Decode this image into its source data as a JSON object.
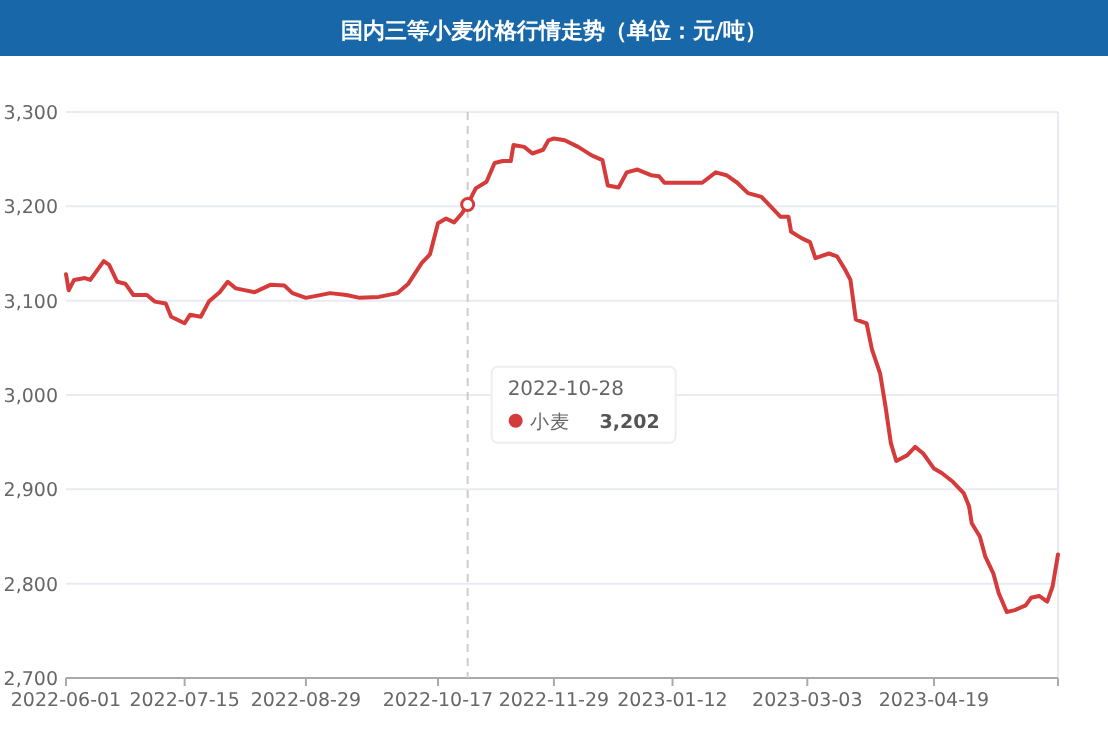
{
  "chart_data": {
    "type": "line",
    "title": "国内三等小麦价格行情走势（单位：元/吨）",
    "xlim": [
      "2022-06-01",
      "2023-06-04"
    ],
    "xticks": [
      "2022-06-01",
      "2022-07-15",
      "2022-08-29",
      "2022-10-17",
      "2022-11-29",
      "2023-01-12",
      "2023-03-03",
      "2023-04-19"
    ],
    "ylim": [
      2700,
      3300
    ],
    "yticks": [
      {
        "value": 2700,
        "label": "2,700"
      },
      {
        "value": 2800,
        "label": "2,800"
      },
      {
        "value": 2900,
        "label": "2,900"
      },
      {
        "value": 3000,
        "label": "3,000"
      },
      {
        "value": 3100,
        "label": "3,100"
      },
      {
        "value": 3200,
        "label": "3,200"
      },
      {
        "value": 3300,
        "label": "3,300"
      }
    ],
    "grid": "y",
    "line_style": "solid",
    "series": [
      {
        "name": "小麦",
        "color": "#d63b3b",
        "x": [
          "2022-06-01",
          "2022-06-02",
          "2022-06-04",
          "2022-06-08",
          "2022-06-10",
          "2022-06-15",
          "2022-06-17",
          "2022-06-20",
          "2022-06-23",
          "2022-06-26",
          "2022-07-01",
          "2022-07-04",
          "2022-07-08",
          "2022-07-10",
          "2022-07-15",
          "2022-07-17",
          "2022-07-21",
          "2022-07-24",
          "2022-07-28",
          "2022-07-31",
          "2022-08-03",
          "2022-08-10",
          "2022-08-16",
          "2022-08-21",
          "2022-08-24",
          "2022-08-29",
          "2022-09-07",
          "2022-09-13",
          "2022-09-18",
          "2022-09-25",
          "2022-10-02",
          "2022-10-06",
          "2022-10-11",
          "2022-10-14",
          "2022-10-17",
          "2022-10-20",
          "2022-10-23",
          "2022-10-26",
          "2022-10-28",
          "2022-10-31",
          "2022-11-04",
          "2022-11-07",
          "2022-11-10",
          "2022-11-13",
          "2022-11-14",
          "2022-11-18",
          "2022-11-21",
          "2022-11-25",
          "2022-11-27",
          "2022-11-29",
          "2022-12-03",
          "2022-12-08",
          "2022-12-13",
          "2022-12-17",
          "2022-12-19",
          "2022-12-23",
          "2022-12-26",
          "2022-12-30",
          "2023-01-04",
          "2023-01-07",
          "2023-01-09",
          "2023-01-12",
          "2023-01-23",
          "2023-01-28",
          "2023-02-01",
          "2023-02-05",
          "2023-02-09",
          "2023-02-14",
          "2023-02-18",
          "2023-02-21",
          "2023-02-24",
          "2023-02-25",
          "2023-03-01",
          "2023-03-04",
          "2023-03-06",
          "2023-03-11",
          "2023-03-14",
          "2023-03-17",
          "2023-03-19",
          "2023-03-21",
          "2023-03-25",
          "2023-03-27",
          "2023-03-30",
          "2023-04-01",
          "2023-04-03",
          "2023-04-05",
          "2023-04-09",
          "2023-04-12",
          "2023-04-15",
          "2023-04-19",
          "2023-04-22",
          "2023-04-26",
          "2023-04-30",
          "2023-05-02",
          "2023-05-03",
          "2023-05-06",
          "2023-05-08",
          "2023-05-11",
          "2023-05-13",
          "2023-05-16",
          "2023-05-19",
          "2023-05-23",
          "2023-05-25",
          "2023-05-28",
          "2023-05-31",
          "2023-06-02",
          "2023-06-04"
        ],
        "values": [
          3128,
          3111,
          3122,
          3124,
          3122,
          3142,
          3138,
          3120,
          3118,
          3106,
          3106,
          3099,
          3097,
          3083,
          3076,
          3085,
          3083,
          3099,
          3109,
          3120,
          3113,
          3109,
          3117,
          3116,
          3108,
          3103,
          3108,
          3106,
          3103,
          3104,
          3108,
          3118,
          3140,
          3149,
          3182,
          3187,
          3183,
          3193,
          3202,
          3219,
          3226,
          3246,
          3248,
          3248,
          3265,
          3263,
          3256,
          3260,
          3270,
          3272,
          3270,
          3263,
          3254,
          3249,
          3222,
          3220,
          3236,
          3239,
          3233,
          3232,
          3225,
          3225,
          3225,
          3236,
          3233,
          3225,
          3214,
          3210,
          3198,
          3189,
          3189,
          3173,
          3166,
          3162,
          3145,
          3150,
          3147,
          3133,
          3122,
          3080,
          3076,
          3048,
          3023,
          2988,
          2949,
          2930,
          2936,
          2945,
          2938,
          2922,
          2917,
          2908,
          2896,
          2882,
          2864,
          2850,
          2829,
          2811,
          2790,
          2770,
          2772,
          2777,
          2785,
          2787,
          2781,
          2797,
          2831
        ]
      }
    ],
    "ref_lines": [
      {
        "axis": "x",
        "value": "2022-10-28",
        "label": "2022-10-28",
        "color": "#cccccc",
        "line_style": "dashed"
      }
    ],
    "annotations": [
      "3,202"
    ]
  }
}
